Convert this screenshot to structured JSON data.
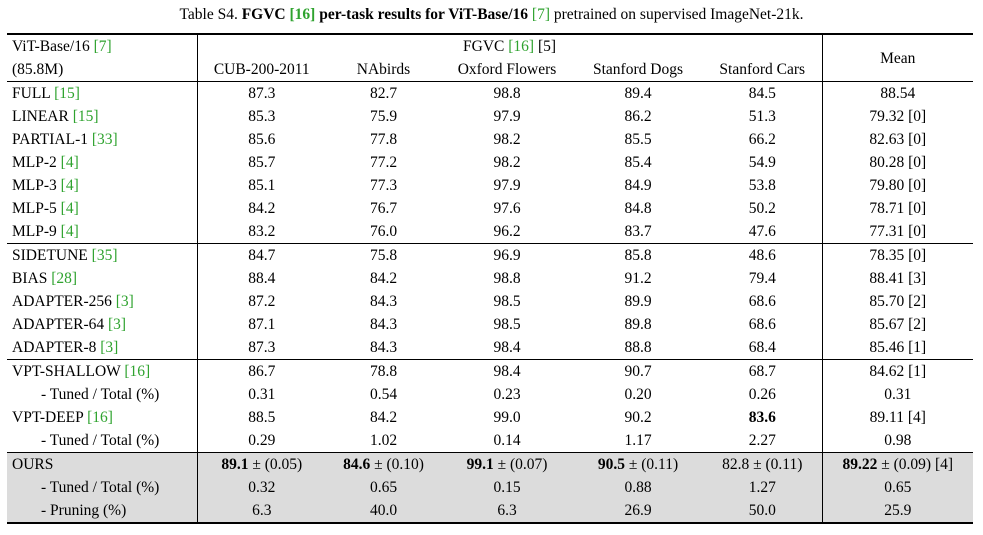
{
  "caption": {
    "prefix": "Table S4.",
    "bold_a": "FGVC",
    "ref_a": "[16]",
    "bold_b": "per-task results for ViT-Base/16",
    "ref_b": "[7]",
    "suffix": "pretrained on supervised ImageNet-21k."
  },
  "header": {
    "model_line1": "ViT-Base/16",
    "model_ref": "[7]",
    "model_line2": "(85.8M)",
    "group_label": "FGVC",
    "group_ref": "[16]",
    "group_suffix": "[5]",
    "mean": "Mean",
    "columns": [
      "CUB-200-2011",
      "NAbirds",
      "Oxford Flowers",
      "Stanford Dogs",
      "Stanford Cars"
    ]
  },
  "rows": [
    {
      "name": "FULL",
      "ref": "[15]",
      "values": [
        "87.3",
        "82.7",
        "98.8",
        "89.4",
        "84.5"
      ],
      "mean": "88.54"
    },
    {
      "name": "LINEAR",
      "ref": "[15]",
      "values": [
        "85.3",
        "75.9",
        "97.9",
        "86.2",
        "51.3"
      ],
      "mean": "79.32 [0]"
    },
    {
      "name": "PARTIAL-1",
      "ref": "[33]",
      "values": [
        "85.6",
        "77.8",
        "98.2",
        "85.5",
        "66.2"
      ],
      "mean": "82.63 [0]"
    },
    {
      "name": "MLP-2",
      "ref": "[4]",
      "values": [
        "85.7",
        "77.2",
        "98.2",
        "85.4",
        "54.9"
      ],
      "mean": "80.28 [0]"
    },
    {
      "name": "MLP-3",
      "ref": "[4]",
      "values": [
        "85.1",
        "77.3",
        "97.9",
        "84.9",
        "53.8"
      ],
      "mean": "79.80 [0]"
    },
    {
      "name": "MLP-5",
      "ref": "[4]",
      "values": [
        "84.2",
        "76.7",
        "97.6",
        "84.8",
        "50.2"
      ],
      "mean": "78.71 [0]"
    },
    {
      "name": "MLP-9",
      "ref": "[4]",
      "values": [
        "83.2",
        "76.0",
        "96.2",
        "83.7",
        "47.6"
      ],
      "mean": "77.31 [0]"
    },
    {
      "name": "SIDETUNE",
      "ref": "[35]",
      "values": [
        "84.7",
        "75.8",
        "96.9",
        "85.8",
        "48.6"
      ],
      "mean": "78.35 [0]"
    },
    {
      "name": "BIAS",
      "ref": "[28]",
      "values": [
        "88.4",
        "84.2",
        "98.8",
        "91.2",
        "79.4"
      ],
      "mean": "88.41 [3]"
    },
    {
      "name": "ADAPTER-256",
      "ref": "[3]",
      "values": [
        "87.2",
        "84.3",
        "98.5",
        "89.9",
        "68.6"
      ],
      "mean": "85.70 [2]"
    },
    {
      "name": "ADAPTER-64",
      "ref": "[3]",
      "values": [
        "87.1",
        "84.3",
        "98.5",
        "89.8",
        "68.6"
      ],
      "mean": "85.67 [2]"
    },
    {
      "name": "ADAPTER-8",
      "ref": "[3]",
      "values": [
        "87.3",
        "84.3",
        "98.4",
        "88.8",
        "68.4"
      ],
      "mean": "85.46 [1]"
    },
    {
      "name": "VPT-SHALLOW",
      "ref": "[16]",
      "values": [
        "86.7",
        "78.8",
        "98.4",
        "90.7",
        "68.7"
      ],
      "mean": "84.62 [1]"
    },
    {
      "name": "- Tuned / Total (%)",
      "values": [
        "0.31",
        "0.54",
        "0.23",
        "0.20",
        "0.26"
      ],
      "mean": "0.31"
    },
    {
      "name": "VPT-DEEP",
      "ref": "[16]",
      "values": [
        "88.5",
        "84.2",
        "99.0",
        "90.2",
        "83.6"
      ],
      "mean": "89.11 [4]"
    },
    {
      "name": "- Tuned / Total (%)",
      "values": [
        "0.29",
        "1.02",
        "0.14",
        "1.17",
        "2.27"
      ],
      "mean": "0.98"
    },
    {
      "name": "OURS",
      "values": [
        "89.1",
        "84.6",
        "99.1",
        "90.5",
        "82.8"
      ],
      "errors": [
        "± (0.05)",
        "± (0.10)",
        "± (0.07)",
        "± (0.11)",
        "± (0.11)"
      ],
      "mean": "89.22",
      "mean_error": "± (0.09) [4]"
    },
    {
      "name": "- Tuned / Total (%)",
      "values": [
        "0.32",
        "0.65",
        "0.15",
        "0.88",
        "1.27"
      ],
      "mean": "0.65"
    },
    {
      "name": "- Pruning (%)",
      "values": [
        "6.3",
        "40.0",
        "6.3",
        "26.9",
        "50.0"
      ],
      "mean": "25.9"
    }
  ]
}
